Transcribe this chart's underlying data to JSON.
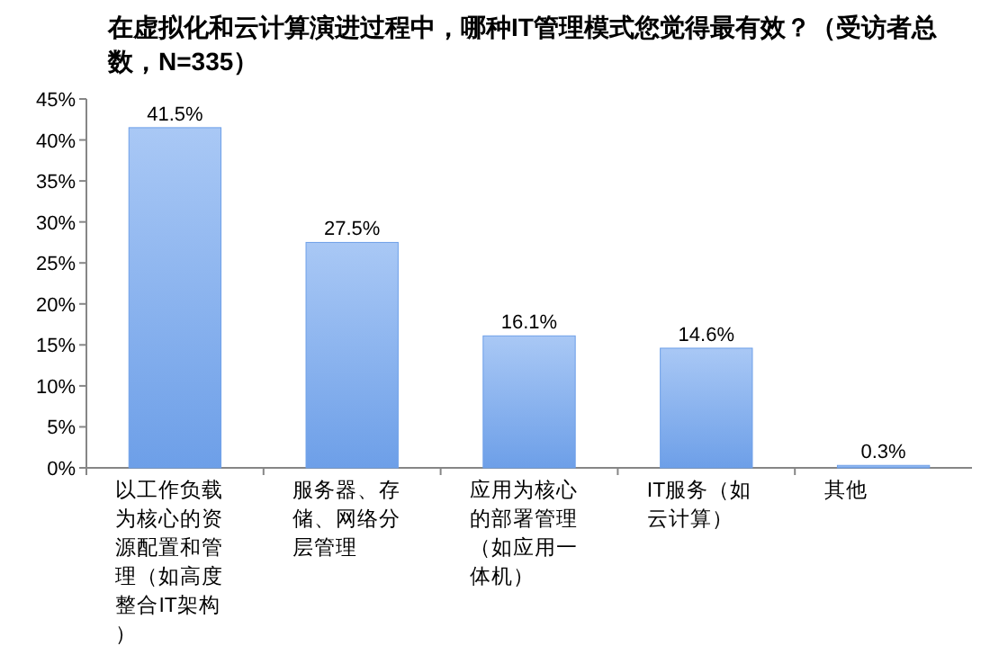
{
  "chart_data": {
    "type": "bar",
    "title": "在虚拟化和云计算演进过程中，哪种IT管理模式您觉得最有效？（受访者总数，N=335）",
    "categories": [
      "以工作负载为核心的资源配置和管理（如高度整合IT架构）",
      "服务器、存储、网络分层管理",
      "应用为核心的部署管理（如应用一体机）",
      "IT服务（如云计算）",
      "其他"
    ],
    "values": [
      41.5,
      27.5,
      16.1,
      14.6,
      0.3
    ],
    "value_labels": [
      "41.5%",
      "27.5%",
      "16.1%",
      "14.6%",
      "0.3%"
    ],
    "color": "#6d9fe8",
    "ylim": [
      0,
      45
    ],
    "yticks": [
      {
        "value": 0,
        "label": "0%"
      },
      {
        "value": 5,
        "label": "5%"
      },
      {
        "value": 10,
        "label": "10%"
      },
      {
        "value": 15,
        "label": "15%"
      },
      {
        "value": 20,
        "label": "20%"
      },
      {
        "value": 25,
        "label": "25%"
      },
      {
        "value": 30,
        "label": "30%"
      },
      {
        "value": 35,
        "label": "35%"
      },
      {
        "value": 40,
        "label": "40%"
      },
      {
        "value": 45,
        "label": "45%"
      }
    ],
    "grid": false
  }
}
